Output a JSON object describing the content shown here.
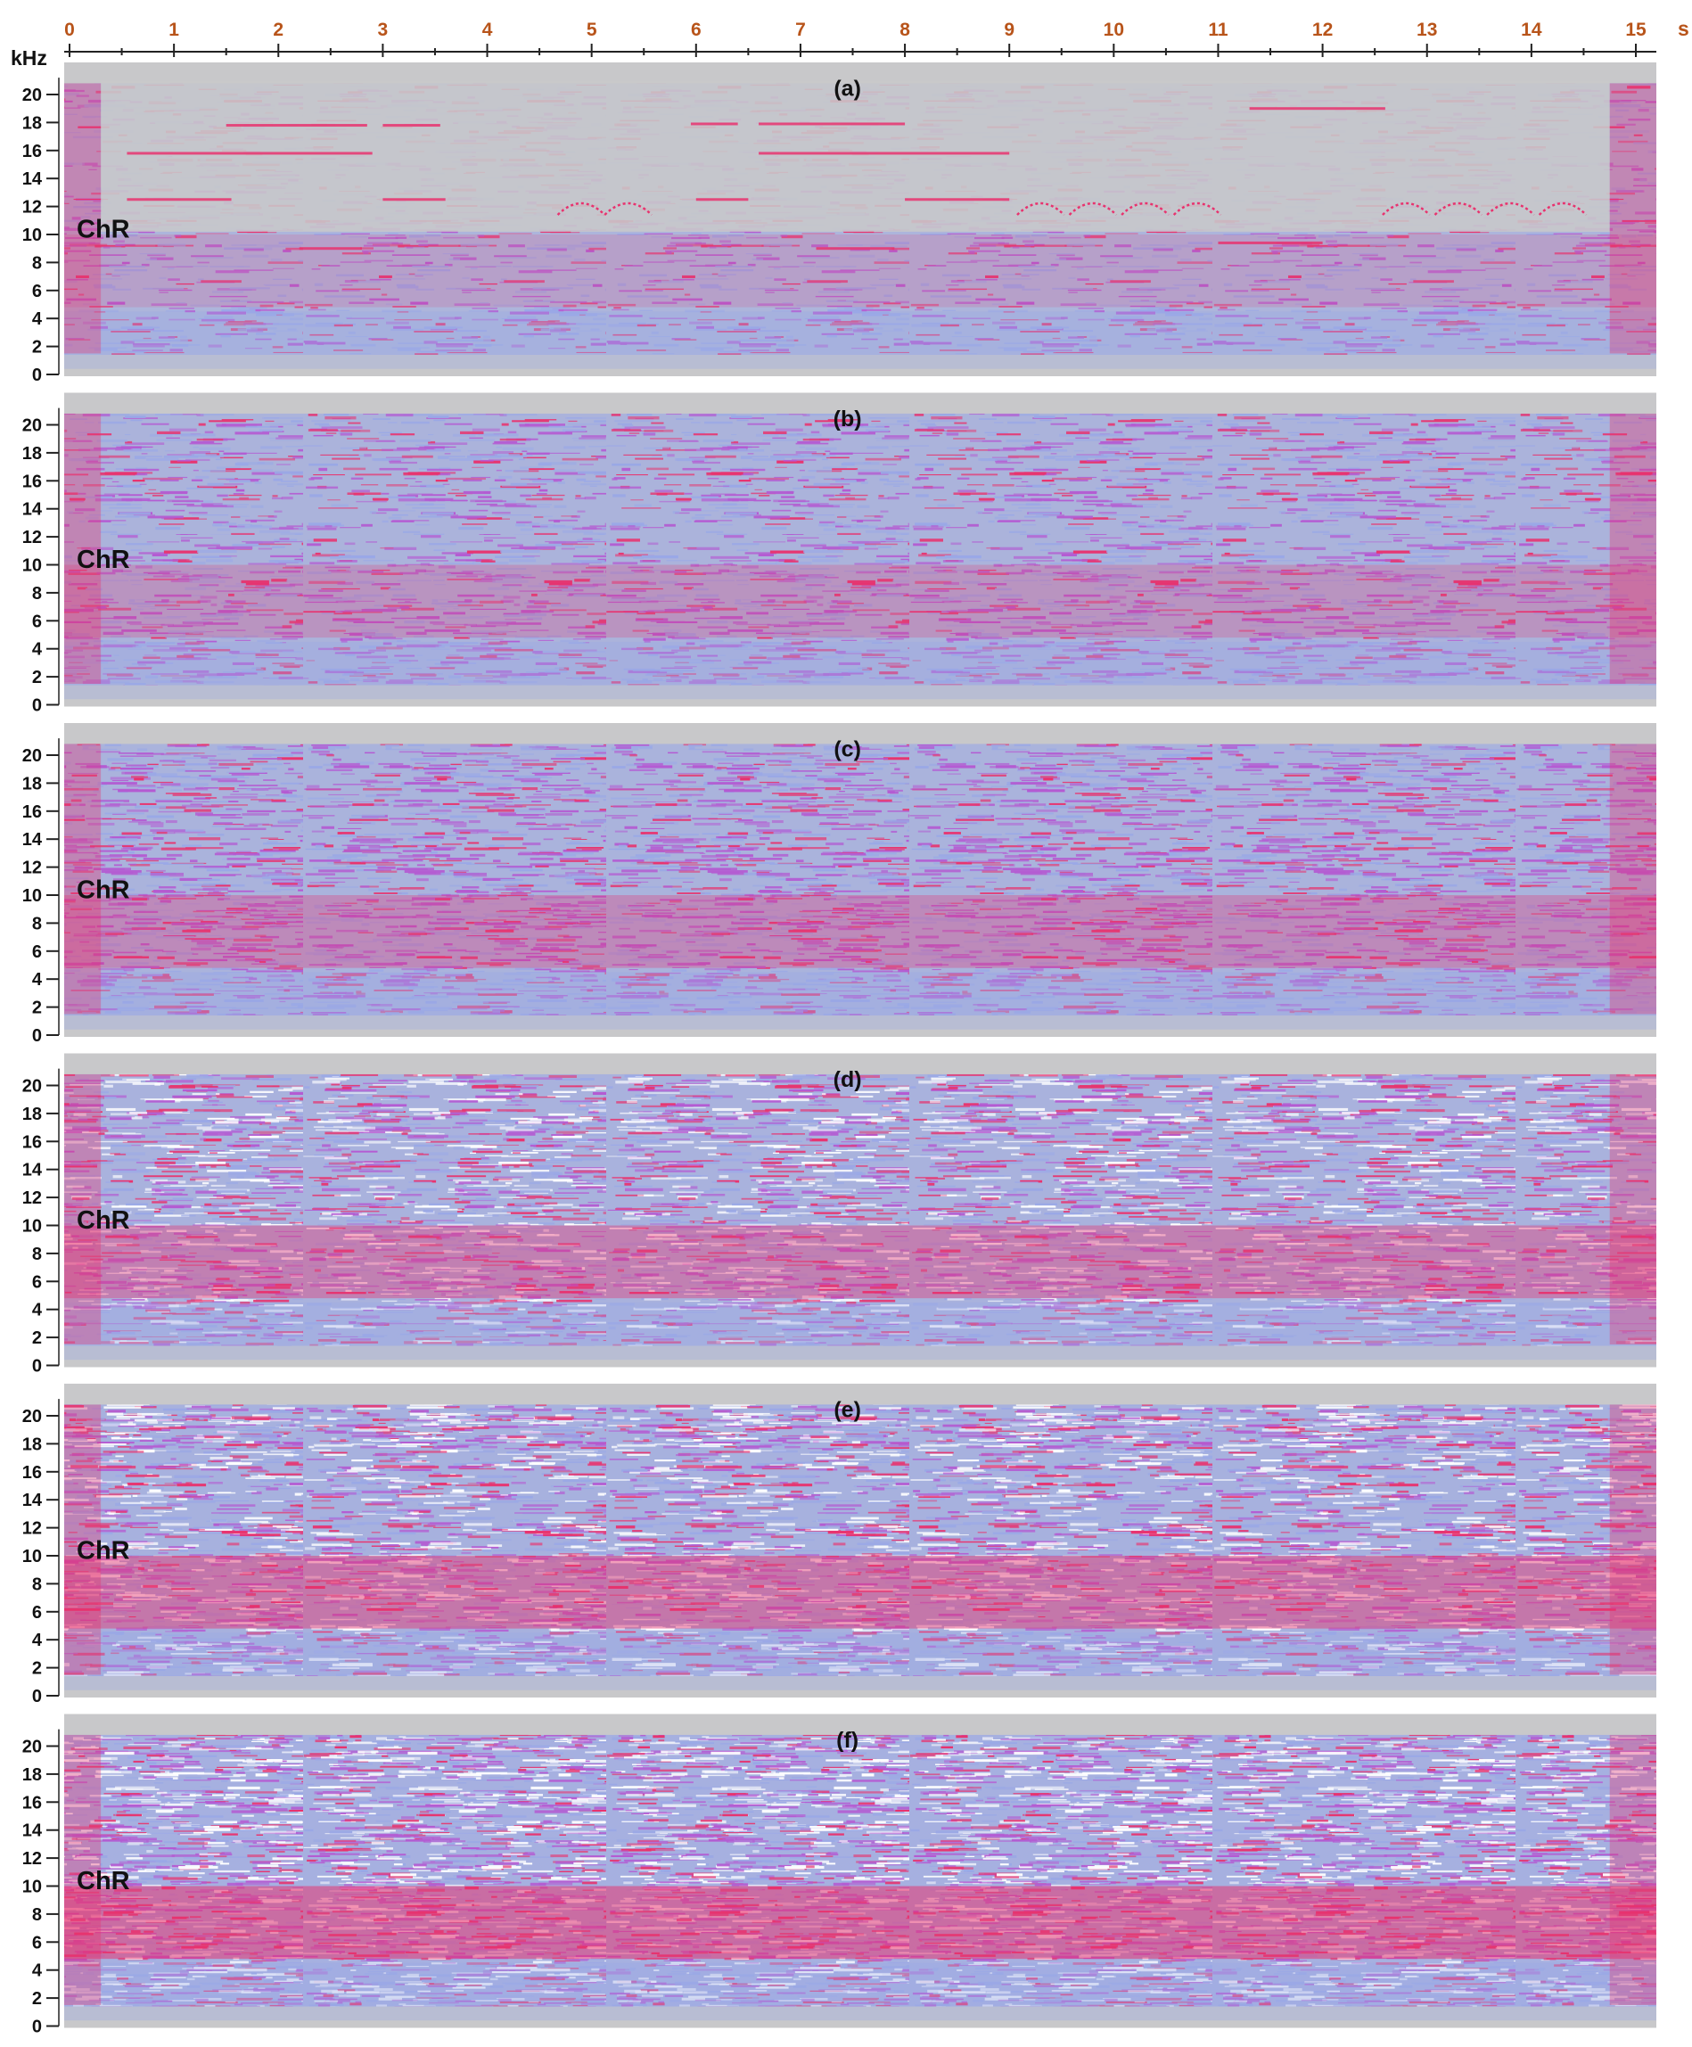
{
  "chart_data": {
    "type": "heatmap",
    "description_kind": "stacked spectrograms",
    "x_axis": {
      "unit": "s",
      "ticks": [
        "0",
        "1",
        "2",
        "3",
        "4",
        "5",
        "6",
        "7",
        "8",
        "9",
        "10",
        "11",
        "12",
        "13",
        "14",
        "15"
      ],
      "range": [
        0,
        15.3
      ]
    },
    "y_axis": {
      "unit": "kHz",
      "ticks": [
        "0",
        "2",
        "4",
        "6",
        "8",
        "10",
        "12",
        "14",
        "16",
        "18",
        "20"
      ],
      "range": [
        0,
        21.5
      ]
    },
    "colors": {
      "background": "#c8c8ca",
      "low": "#9aa8e6",
      "mid": "#b45ad2",
      "high": "#e8326e",
      "peak": "#ffffff",
      "tick_x": "#b8541a",
      "text": "#111111"
    },
    "panels": [
      {
        "label": "(a)",
        "channel": "ChR",
        "intensity": 0.18
      },
      {
        "label": "(b)",
        "channel": "ChR",
        "intensity": 0.36
      },
      {
        "label": "(c)",
        "channel": "ChR",
        "intensity": 0.52
      },
      {
        "label": "(d)",
        "channel": "ChR",
        "intensity": 0.68
      },
      {
        "label": "(e)",
        "channel": "ChR",
        "intensity": 0.84
      },
      {
        "label": "(f)",
        "channel": "ChR",
        "intensity": 1.0
      }
    ]
  }
}
